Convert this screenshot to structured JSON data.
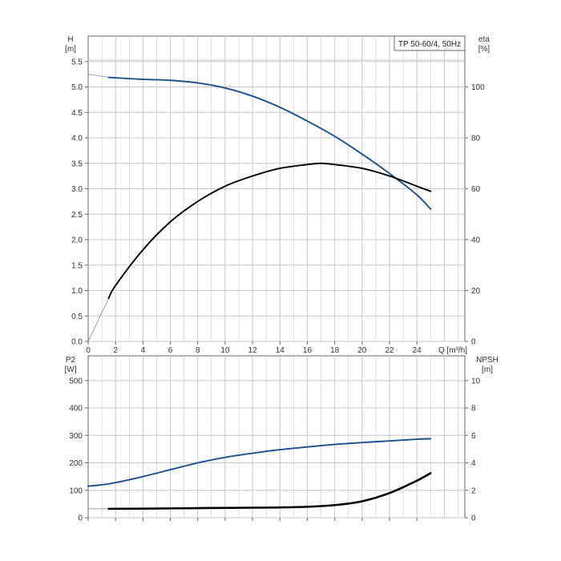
{
  "title": "TP 50-60/4, 50Hz",
  "colors": {
    "blue": "#1f4e8c",
    "black": "#000000",
    "grid": "#c8c8c8",
    "frame": "#666666"
  },
  "chart_data": [
    {
      "type": "line",
      "name": "upper",
      "xlabel": "Q [m³/h]",
      "x_ticks": [
        0,
        2,
        4,
        6,
        8,
        10,
        12,
        14,
        16,
        18,
        20,
        22,
        24
      ],
      "xlim": [
        0,
        27.5
      ],
      "left_axis": {
        "label_line1": "H",
        "label_line2": "[m]",
        "ylim": [
          0,
          6.0
        ],
        "ticks": [
          0.0,
          0.5,
          1.0,
          1.5,
          2.0,
          2.5,
          3.0,
          3.5,
          4.0,
          4.5,
          5.0,
          5.5
        ]
      },
      "right_axis": {
        "label_line1": "eta",
        "label_line2": "[%]",
        "ylim": [
          0,
          120
        ],
        "ticks": [
          0,
          20,
          40,
          60,
          80,
          100
        ]
      },
      "grid": true,
      "series": [
        {
          "axis": "left",
          "color": "#1f4e8c",
          "x": [
            0,
            1.5,
            2,
            4,
            6,
            8,
            10,
            12,
            14,
            16,
            18,
            20,
            22,
            24,
            25
          ],
          "y": [
            5.25,
            5.19,
            5.18,
            5.15,
            5.13,
            5.08,
            4.98,
            4.82,
            4.6,
            4.33,
            4.03,
            3.68,
            3.3,
            2.88,
            2.6
          ],
          "thin_to": 1.5
        },
        {
          "axis": "right",
          "color": "#000000",
          "x": [
            0,
            1.5,
            2,
            4,
            6,
            8,
            10,
            12,
            14,
            16,
            17,
            18,
            20,
            22,
            24,
            25
          ],
          "y": [
            0,
            17,
            22,
            36,
            47,
            55,
            61,
            65,
            68,
            69.5,
            70,
            69.5,
            68,
            65,
            61,
            59
          ],
          "thin_to": 1.5
        }
      ]
    },
    {
      "type": "line",
      "name": "lower",
      "x_ticks": [
        0,
        2,
        4,
        6,
        8,
        10,
        12,
        14,
        16,
        18,
        20,
        22,
        24
      ],
      "xlim": [
        0,
        27.5
      ],
      "left_axis": {
        "label_line1": "P2",
        "label_line2": "[W]",
        "ylim": [
          0,
          590
        ],
        "ticks": [
          0,
          100,
          200,
          300,
          400,
          500
        ]
      },
      "right_axis": {
        "label_line1": "NPSH",
        "label_line2": "[m]",
        "ylim": [
          0,
          11.8
        ],
        "ticks": [
          0,
          2,
          4,
          6,
          8,
          10
        ]
      },
      "grid": true,
      "series": [
        {
          "axis": "left",
          "color": "#1f4e8c",
          "x": [
            0,
            1,
            2,
            4,
            6,
            8,
            10,
            12,
            14,
            16,
            18,
            20,
            22,
            24,
            25
          ],
          "y": [
            115,
            120,
            128,
            150,
            175,
            200,
            220,
            235,
            248,
            258,
            267,
            274,
            280,
            286,
            288
          ],
          "thin_to": 0
        },
        {
          "axis": "right",
          "color": "#000000",
          "x": [
            0,
            1.5,
            4,
            8,
            12,
            14,
            16,
            18,
            20,
            22,
            24,
            25
          ],
          "y": [
            0.65,
            0.65,
            0.66,
            0.7,
            0.73,
            0.75,
            0.8,
            0.92,
            1.2,
            1.8,
            2.7,
            3.25
          ],
          "thin_to": 1.5,
          "bold": true
        }
      ]
    }
  ]
}
